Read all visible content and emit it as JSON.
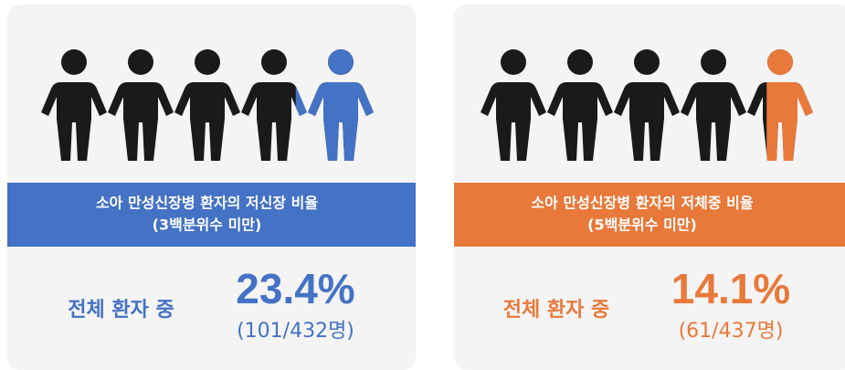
{
  "chart_data": [
    {
      "type": "pictogram",
      "title": "소아 만성신장병 환자의 저신장 비율",
      "subtitle": "(3백분위수 미만)",
      "label": "전체 환자 중",
      "values": [
        23.4
      ],
      "value_labels": [
        "23.4%"
      ],
      "note": "(101/432명)",
      "color": "#4472c4",
      "ylim": [
        0,
        100
      ]
    },
    {
      "type": "pictogram",
      "title": "소아 만성신장병 환자의 저체중 비율",
      "subtitle": "(5백분위수 미만)",
      "label": "전체 환자 중",
      "values": [
        14.1
      ],
      "value_labels": [
        "14.1%"
      ],
      "note": "(61/437명)",
      "color": "#e8793a",
      "ylim": [
        0,
        100
      ]
    }
  ]
}
